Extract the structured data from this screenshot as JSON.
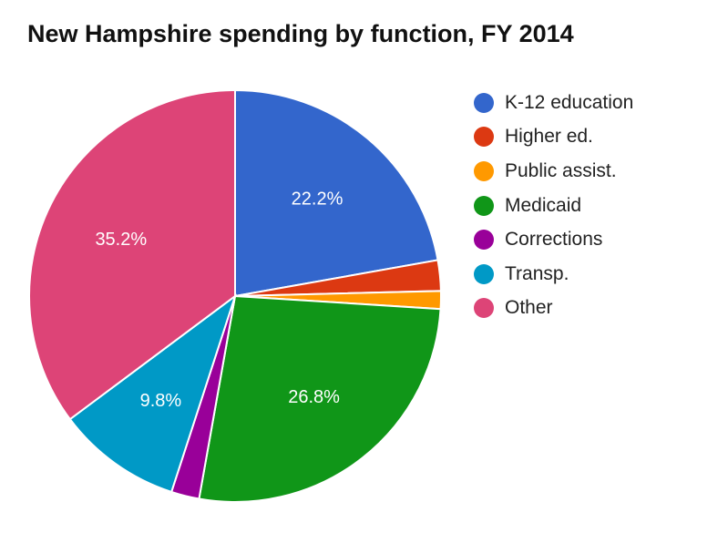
{
  "chart_data": {
    "type": "pie",
    "title": "New Hampshire spending by function, FY 2014",
    "legend_position": "right",
    "slices": [
      {
        "name": "K-12 education",
        "value": 22.2,
        "label": "22.2%",
        "color": "#3366cc"
      },
      {
        "name": "Higher ed.",
        "value": 2.4,
        "label": "",
        "color": "#dc3912"
      },
      {
        "name": "Public assist.",
        "value": 1.4,
        "label": "",
        "color": "#ff9900"
      },
      {
        "name": "Medicaid",
        "value": 26.8,
        "label": "26.8%",
        "color": "#109618"
      },
      {
        "name": "Corrections",
        "value": 2.2,
        "label": "",
        "color": "#990099"
      },
      {
        "name": "Transp.",
        "value": 9.8,
        "label": "9.8%",
        "color": "#0099c6"
      },
      {
        "name": "Other",
        "value": 35.2,
        "label": "35.2%",
        "color": "#dd4477"
      }
    ]
  }
}
